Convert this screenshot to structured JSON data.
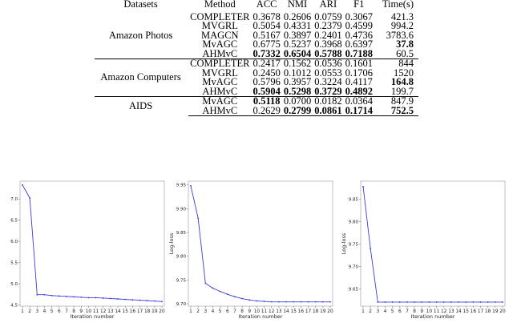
{
  "table": {
    "headers": [
      "Datasets",
      "Method",
      "ACC",
      "NMI",
      "ARI",
      "F1",
      "Time(s)"
    ],
    "groups": [
      {
        "dataset": "Amazon Photos",
        "rows": [
          {
            "method": "COMPLETER",
            "cells": [
              {
                "v": "0.3678",
                "b": false
              },
              {
                "v": "0.2606",
                "b": false
              },
              {
                "v": "0.0759",
                "b": false
              },
              {
                "v": "0.3067",
                "b": false
              },
              {
                "v": "421.3",
                "b": false
              }
            ]
          },
          {
            "method": "MVGRL",
            "cells": [
              {
                "v": "0.5054",
                "b": false
              },
              {
                "v": "0.4331",
                "b": false
              },
              {
                "v": "0.2379",
                "b": false
              },
              {
                "v": "0.4599",
                "b": false
              },
              {
                "v": "994.2",
                "b": false
              }
            ]
          },
          {
            "method": "MAGCN",
            "cells": [
              {
                "v": "0.5167",
                "b": false
              },
              {
                "v": "0.3897",
                "b": false
              },
              {
                "v": "0.2401",
                "b": false
              },
              {
                "v": "0.4736",
                "b": false
              },
              {
                "v": "3783.6",
                "b": false
              }
            ]
          },
          {
            "method": "MvAGC",
            "cells": [
              {
                "v": "0.6775",
                "b": false
              },
              {
                "v": "0.5237",
                "b": false
              },
              {
                "v": "0.3968",
                "b": false
              },
              {
                "v": "0.6397",
                "b": false
              },
              {
                "v": "37.8",
                "b": true
              }
            ]
          },
          {
            "method": "AHMvC",
            "cells": [
              {
                "v": "0.7332",
                "b": true
              },
              {
                "v": "0.6504",
                "b": true
              },
              {
                "v": "0.5788",
                "b": true
              },
              {
                "v": "0.7188",
                "b": true
              },
              {
                "v": "60.5",
                "b": false
              }
            ]
          }
        ]
      },
      {
        "dataset": "Amazon Computers",
        "rows": [
          {
            "method": "COMPLETER",
            "cells": [
              {
                "v": "0.2417",
                "b": false
              },
              {
                "v": "0.1562",
                "b": false
              },
              {
                "v": "0.0536",
                "b": false
              },
              {
                "v": "0.1601",
                "b": false
              },
              {
                "v": "844",
                "b": false
              }
            ]
          },
          {
            "method": "MVGRL",
            "cells": [
              {
                "v": "0.2450",
                "b": false
              },
              {
                "v": "0.1012",
                "b": false
              },
              {
                "v": "0.0553",
                "b": false
              },
              {
                "v": "0.1706",
                "b": false
              },
              {
                "v": "1520",
                "b": false
              }
            ]
          },
          {
            "method": "MvAGC",
            "cells": [
              {
                "v": "0.5796",
                "b": false
              },
              {
                "v": "0.3957",
                "b": false
              },
              {
                "v": "0.3224",
                "b": false
              },
              {
                "v": "0.4117",
                "b": false
              },
              {
                "v": "164.8",
                "b": true
              }
            ]
          },
          {
            "method": "AHMvC",
            "cells": [
              {
                "v": "0.5904",
                "b": true
              },
              {
                "v": "0.5298",
                "b": true
              },
              {
                "v": "0.3729",
                "b": true
              },
              {
                "v": "0.4892",
                "b": true
              },
              {
                "v": "199.7",
                "b": false
              }
            ]
          }
        ]
      },
      {
        "dataset": "AIDS",
        "rows": [
          {
            "method": "MvAGC",
            "cells": [
              {
                "v": "0.5118",
                "b": true
              },
              {
                "v": "0.0700",
                "b": false
              },
              {
                "v": "0.0182",
                "b": false
              },
              {
                "v": "0.0364",
                "b": false
              },
              {
                "v": "847.9",
                "b": false
              }
            ]
          },
          {
            "method": "AHMvC",
            "cells": [
              {
                "v": "0.2629",
                "b": false
              },
              {
                "v": "0.2799",
                "b": true
              },
              {
                "v": "0.0861",
                "b": true
              },
              {
                "v": "0.1714",
                "b": true
              },
              {
                "v": "752.5",
                "b": true
              }
            ]
          }
        ]
      }
    ]
  },
  "chart_data": [
    {
      "type": "line",
      "xlabel": "Iteration number",
      "ylabel": "",
      "x": [
        1,
        2,
        3,
        4,
        5,
        6,
        7,
        8,
        9,
        10,
        11,
        12,
        13,
        14,
        15,
        16,
        17,
        18,
        19,
        20
      ],
      "ylim": [
        4.47,
        7.42
      ],
      "yticks": [
        "4.5",
        "5.0",
        "5.5",
        "6.0",
        "6.5",
        "7.0"
      ],
      "series": [
        {
          "values": [
            7.33,
            7.02,
            4.74,
            4.74,
            4.72,
            4.71,
            4.7,
            4.69,
            4.68,
            4.67,
            4.67,
            4.66,
            4.65,
            4.64,
            4.63,
            4.62,
            4.61,
            4.6,
            4.59,
            4.58
          ]
        }
      ],
      "color": "#3b3bd6"
    },
    {
      "type": "line",
      "xlabel": "Iteration number",
      "ylabel": "Log-loss",
      "x": [
        1,
        2,
        3,
        4,
        5,
        6,
        7,
        8,
        9,
        10,
        11,
        12,
        13,
        14,
        15,
        16,
        17,
        18,
        19,
        20
      ],
      "ylim": [
        9.695,
        9.958
      ],
      "yticks": [
        "9.70",
        "9.75",
        "9.80",
        "9.85",
        "9.90",
        "9.95"
      ],
      "series": [
        {
          "values": [
            9.948,
            9.88,
            9.743,
            9.733,
            9.726,
            9.72,
            9.715,
            9.711,
            9.708,
            9.706,
            9.705,
            9.704,
            9.704,
            9.704,
            9.704,
            9.704,
            9.704,
            9.704,
            9.704,
            9.704
          ]
        }
      ],
      "color": "#3b3bd6"
    },
    {
      "type": "line",
      "xlabel": "Iteration number",
      "ylabel": "Log-loss",
      "x": [
        1,
        2,
        3,
        4,
        5,
        6,
        7,
        8,
        9,
        10,
        11,
        12,
        13,
        14,
        15,
        16,
        17,
        18,
        19,
        20
      ],
      "ylim": [
        9.612,
        9.89
      ],
      "yticks": [
        "9.65",
        "9.70",
        "9.75",
        "9.80",
        "9.85"
      ],
      "series": [
        {
          "values": [
            9.878,
            9.74,
            9.621,
            9.621,
            9.621,
            9.621,
            9.621,
            9.621,
            9.621,
            9.621,
            9.621,
            9.621,
            9.621,
            9.621,
            9.621,
            9.621,
            9.621,
            9.621,
            9.621,
            9.621
          ]
        }
      ],
      "color": "#3b3bd6"
    }
  ]
}
